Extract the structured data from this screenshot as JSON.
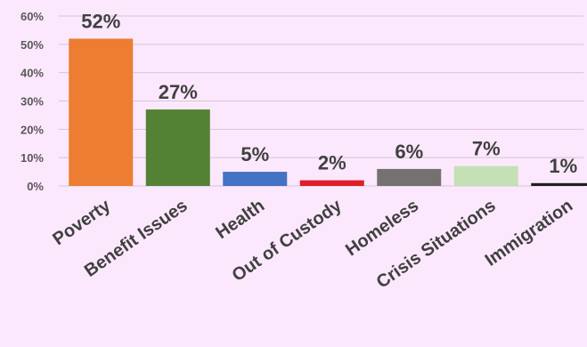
{
  "chart_data": {
    "type": "bar",
    "categories": [
      "Poverty",
      "Benefit Issues",
      "Health",
      "Out of Custody",
      "Homeless",
      "Crisis Situations",
      "Immigration"
    ],
    "values": [
      52,
      27,
      5,
      2,
      6,
      7,
      1
    ],
    "data_labels": [
      "52%",
      "27%",
      "5%",
      "2%",
      "6%",
      "7%",
      "1%"
    ],
    "colors": [
      "#ed7d31",
      "#548235",
      "#4472c4",
      "#e01e2a",
      "#767171",
      "#c5e0b4",
      "#1f1f1f"
    ],
    "y_ticks": [
      0,
      10,
      20,
      30,
      40,
      50,
      60
    ],
    "y_tick_labels": [
      "0%",
      "10%",
      "20%",
      "30%",
      "40%",
      "50%",
      "60%"
    ],
    "ylim": [
      0,
      60
    ],
    "grid": true,
    "title": "",
    "xlabel": "",
    "ylabel": ""
  }
}
